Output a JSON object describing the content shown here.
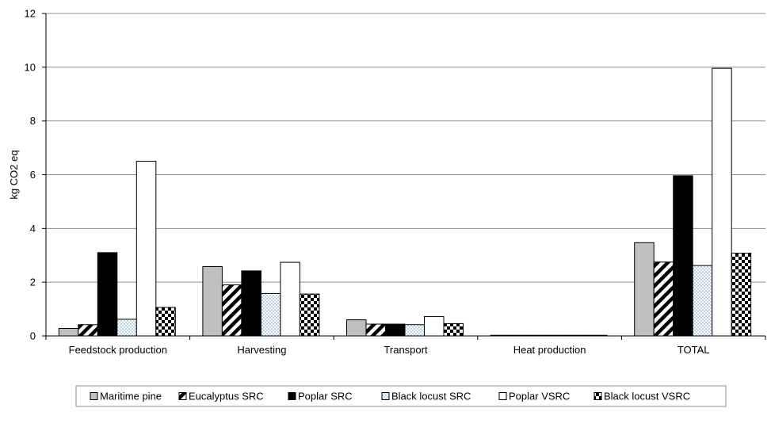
{
  "chart_data": {
    "type": "bar",
    "title": "",
    "xlabel": "",
    "ylabel": "kg CO2 eq",
    "ylim": [
      0,
      12
    ],
    "yticks": [
      0,
      2,
      4,
      6,
      8,
      10,
      12
    ],
    "grid": true,
    "legend_position": "bottom",
    "categories": [
      "Feedstock production",
      "Harvesting",
      "Transport",
      "Heat production",
      "TOTAL"
    ],
    "series": [
      {
        "name": "Maritime pine",
        "pattern": "solid-gray",
        "color": "#bfbfbf",
        "values": [
          0.28,
          2.58,
          0.6,
          0.02,
          3.47
        ]
      },
      {
        "name": "Eucalyptus SRC",
        "pattern": "diagonal-stripes",
        "color": "#000000",
        "values": [
          0.42,
          1.9,
          0.44,
          0.02,
          2.75
        ]
      },
      {
        "name": "Poplar SRC",
        "pattern": "solid-black",
        "color": "#000000",
        "values": [
          3.1,
          2.42,
          0.44,
          0.02,
          5.96
        ]
      },
      {
        "name": "Black locust SRC",
        "pattern": "light-dots",
        "color": "#9fc0e0",
        "values": [
          0.62,
          1.58,
          0.42,
          0.02,
          2.62
        ]
      },
      {
        "name": "Poplar VSRC",
        "pattern": "solid-white",
        "color": "#ffffff",
        "values": [
          6.5,
          2.74,
          0.72,
          0.02,
          9.96
        ]
      },
      {
        "name": "Black locust VSRC",
        "pattern": "checkerboard",
        "color": "#000000",
        "values": [
          1.06,
          1.56,
          0.46,
          0.02,
          3.08
        ]
      }
    ]
  }
}
